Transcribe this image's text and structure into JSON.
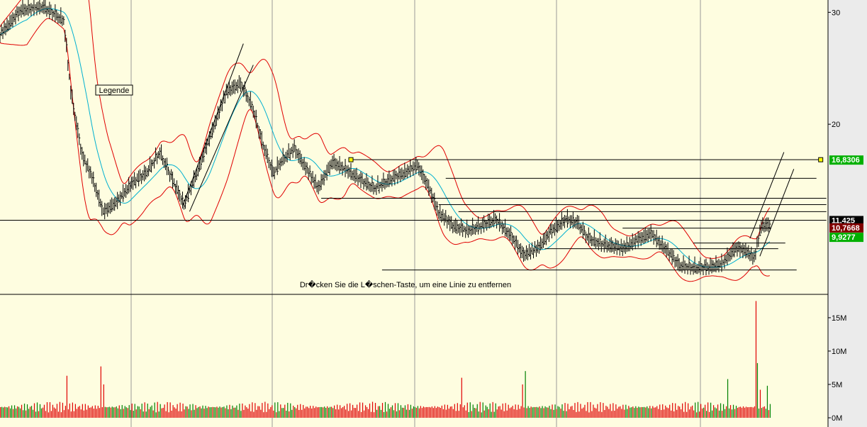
{
  "hint": "Dr�cken Sie die L�schen-Taste, um eine Linie zu entfernen",
  "legend_label": "Legende",
  "colors": {
    "background": "#fefde0",
    "axis_bg": "#ebebeb",
    "bands": "#e00000",
    "ma": "#00b0d0",
    "price": "#000000",
    "vol_up": "#008000",
    "vol_down": "#e00000",
    "tag_green": "#00b000",
    "tag_black": "#000000",
    "tag_darkred": "#800000",
    "anchor": "#ffff00"
  },
  "chart_data": [
    {
      "type": "line",
      "panel": "price",
      "title": "",
      "ylim": [
        4.8,
        31.1
      ],
      "xlim": [
        0,
        584
      ],
      "y_ticks": [
        {
          "value": 20,
          "label": "20"
        },
        {
          "value": 30,
          "label": "30"
        }
      ],
      "grid": true,
      "price_tags": [
        {
          "value": 16.8306,
          "label": "16,8306",
          "color": "#00b000"
        },
        {
          "value": 11.425,
          "label": "11,425",
          "color": "#000000"
        },
        {
          "value": 10.7668,
          "label": "10,7668",
          "color": "#800000"
        },
        {
          "value": 9.9277,
          "label": "9,9277",
          "color": "#00b000"
        }
      ],
      "series": [
        {
          "x": [
            0,
            15,
            30,
            45,
            50,
            58,
            65,
            73,
            83,
            93,
            103,
            113,
            123,
            130,
            140,
            150,
            160,
            170,
            178,
            185,
            193,
            200,
            208,
            215,
            225,
            235,
            245,
            255,
            265,
            275,
            285,
            295,
            303,
            310,
            320,
            330,
            340,
            350,
            360,
            370,
            380,
            390,
            400,
            408,
            415,
            425,
            440,
            450,
            460,
            470,
            480,
            490,
            500,
            510,
            520,
            528,
            533,
            538,
            544
          ],
          "close": [
            28.0,
            30.2,
            30.5,
            29.3,
            22.9,
            17.2,
            15.3,
            12.1,
            13.1,
            14.7,
            15.6,
            17.5,
            14.7,
            12.8,
            15.9,
            19.4,
            22.9,
            23.6,
            21.7,
            18.5,
            15.6,
            16.9,
            17.8,
            16.3,
            14.3,
            16.6,
            15.9,
            15.0,
            14.3,
            15.0,
            15.6,
            16.3,
            14.3,
            12.1,
            10.9,
            10.5,
            10.9,
            11.5,
            10.2,
            8.3,
            8.9,
            10.5,
            11.5,
            11.2,
            9.9,
            9.3,
            8.9,
            9.6,
            10.2,
            8.9,
            7.4,
            7.2,
            7.2,
            7.5,
            8.9,
            8.6,
            8.0,
            10.9,
            11.0
          ]
        }
      ],
      "horizontal_lines": [
        {
          "value": 16.83,
          "from": 248,
          "to": 580
        },
        {
          "value": 15.17,
          "from": 315,
          "to": 577
        },
        {
          "value": 13.39,
          "from": 227,
          "to": 584
        },
        {
          "value": 12.82,
          "from": 310,
          "to": 584
        },
        {
          "value": 12.19,
          "from": 324,
          "to": 584
        },
        {
          "value": 11.425,
          "from": 0,
          "to": 584
        },
        {
          "value": 10.72,
          "from": 440,
          "to": 545
        },
        {
          "value": 9.39,
          "from": 490,
          "to": 555
        },
        {
          "value": 8.88,
          "from": 385,
          "to": 550
        },
        {
          "value": 6.98,
          "from": 270,
          "to": 563
        }
      ],
      "trend_lines": [
        {
          "x1": 129,
          "y1": 12.7,
          "x2": 172,
          "y2": 27.2
        },
        {
          "x1": 134,
          "y1": 12.2,
          "x2": 179,
          "y2": 25.3
        },
        {
          "x1": 530,
          "y1": 9.8,
          "x2": 554,
          "y2": 17.5
        },
        {
          "x1": 537,
          "y1": 8.2,
          "x2": 561,
          "y2": 16.0
        }
      ]
    },
    {
      "type": "bar",
      "panel": "volume",
      "ylim": [
        0,
        18.5
      ],
      "unit": "M",
      "y_ticks": [
        {
          "value": 0,
          "label": "0M"
        },
        {
          "value": 5,
          "label": "5M"
        },
        {
          "value": 10,
          "label": "10M"
        },
        {
          "value": 15,
          "label": "15M"
        }
      ],
      "spikes": [
        {
          "x": 47,
          "v": 6.3
        },
        {
          "x": 71,
          "v": 7.7
        },
        {
          "x": 73,
          "v": 5.0
        },
        {
          "x": 326,
          "v": 6.0
        },
        {
          "x": 371,
          "v": 7.0
        },
        {
          "x": 369,
          "v": 5.0
        },
        {
          "x": 514,
          "v": 5.8
        },
        {
          "x": 534,
          "v": 17.5
        },
        {
          "x": 535,
          "v": 8.2
        },
        {
          "x": 537,
          "v": 4.2
        },
        {
          "x": 542,
          "v": 4.8
        }
      ],
      "baseline_range": [
        0.8,
        2.4
      ]
    }
  ]
}
